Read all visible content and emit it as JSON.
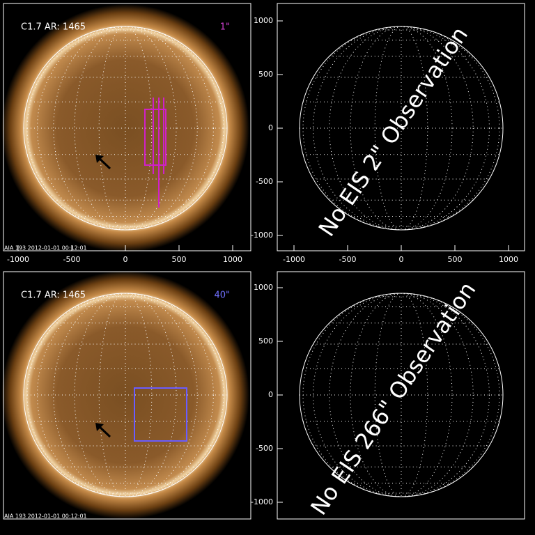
{
  "panels": [
    {
      "title": "C1.7 AR: 1465",
      "scale": "1\"",
      "footer": "AIA 193  2012-01-01 00:12:01",
      "xticks": [
        -1000,
        -500,
        0,
        500,
        1000
      ]
    },
    {
      "message": "No EIS 2\" Observation",
      "xticks": [
        -1000,
        -500,
        0,
        500,
        1000
      ],
      "yticks": [
        1000,
        500,
        0,
        -500,
        -1000
      ]
    },
    {
      "title": "C1.7 AR: 1465",
      "scale": "40\"",
      "footer": "AIA 193  2012-01-01 00:12:01"
    },
    {
      "message": "No EIS 266\" Observation",
      "yticks": [
        1000,
        500,
        0,
        -500,
        -1000
      ]
    }
  ]
}
